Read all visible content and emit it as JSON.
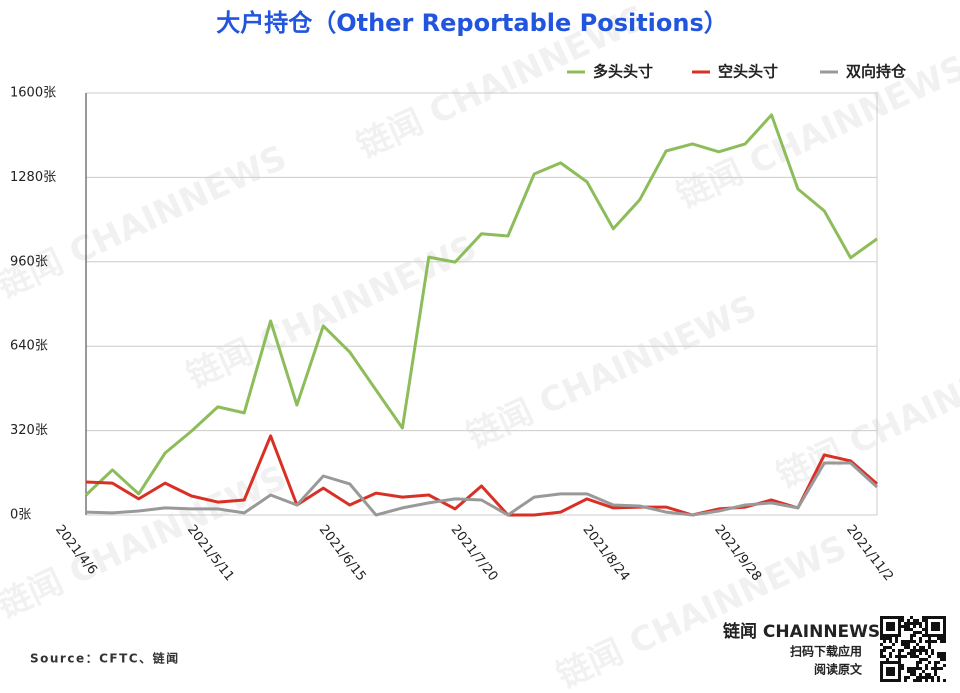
{
  "chart_data": {
    "type": "line",
    "title": "大户持仓（Other Reportable Positions）",
    "source": "Source：CFTC、链闻",
    "watermark": "链闻 CHAINNEWS",
    "brand": {
      "name": "链闻 CHAINNEWS",
      "line1": "扫码下载应用",
      "line2": "阅读原文"
    },
    "categories": [
      "2021/4/6",
      null,
      null,
      null,
      null,
      "2021/5/11",
      null,
      null,
      null,
      null,
      "2021/6/15",
      null,
      null,
      null,
      null,
      "2021/7/20",
      null,
      null,
      null,
      null,
      "2021/8/24",
      null,
      null,
      null,
      null,
      "2021/9/28",
      null,
      null,
      null,
      null,
      "2021/11/2"
    ],
    "series": [
      {
        "name": "多头头寸",
        "color": "#8dbd5a",
        "values": [
          76,
          171,
          80,
          235,
          318,
          410,
          387,
          736,
          417,
          717,
          618,
          474,
          330,
          978,
          959,
          1066,
          1058,
          1293,
          1335,
          1263,
          1085,
          1195,
          1380,
          1407,
          1377,
          1407,
          1517,
          1236,
          1153,
          975,
          1047
        ]
      },
      {
        "name": "空头头寸",
        "color": "#d93025",
        "values": [
          125,
          121,
          61,
          121,
          72,
          49,
          57,
          300,
          38,
          102,
          38,
          83,
          68,
          76,
          23,
          110,
          0,
          0,
          11,
          61,
          27,
          30,
          30,
          0,
          23,
          30,
          57,
          27,
          228,
          205,
          118
        ]
      },
      {
        "name": "双向持仓",
        "color": "#999999",
        "values": [
          11,
          8,
          15,
          27,
          23,
          23,
          8,
          76,
          38,
          148,
          118,
          0,
          27,
          46,
          61,
          57,
          0,
          68,
          80,
          80,
          38,
          34,
          11,
          0,
          15,
          38,
          46,
          27,
          197,
          197,
          106
        ]
      }
    ],
    "ylim": [
      0,
      1600
    ],
    "yticks": [
      {
        "value": 0,
        "label": "0张"
      },
      {
        "value": 320,
        "label": "320张"
      },
      {
        "value": 640,
        "label": "640张"
      },
      {
        "value": 960,
        "label": "960张"
      },
      {
        "value": 1280,
        "label": "1280张"
      },
      {
        "value": 1600,
        "label": "1600张"
      }
    ],
    "grid": true
  }
}
